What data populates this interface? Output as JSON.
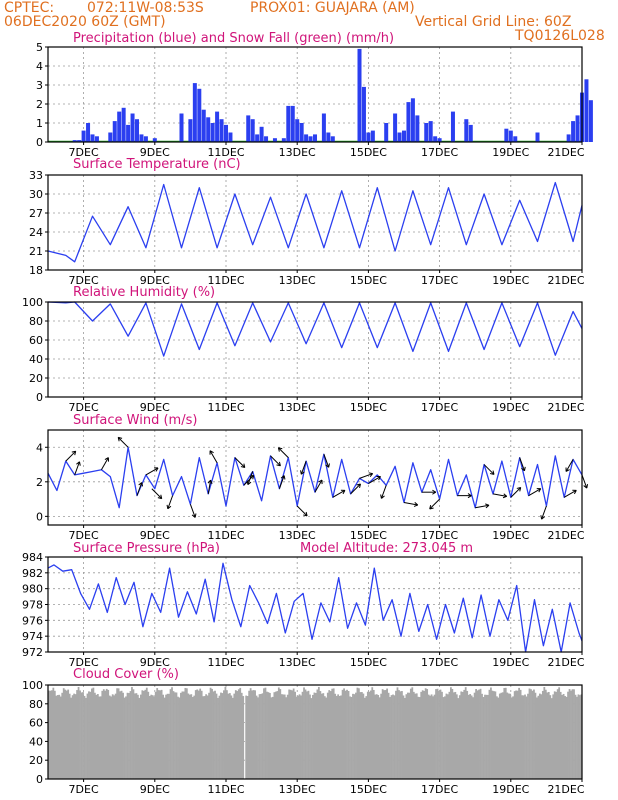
{
  "header": {
    "line1_left": "CPTEC:",
    "line1_coords": "072:11W-08:53S",
    "line1_station": "PROX01: GUAJARA (AM)",
    "line2_left": "06DEC2020 60Z (GMT)",
    "line2_right": "Vertical Grid Line: 60Z",
    "line3_right": "TQ0126L028"
  },
  "x_axis": {
    "start": "2020-12-06T00:00",
    "end": "2020-12-21T00:00",
    "tick_labels": [
      "7DEC",
      "9DEC",
      "11DEC",
      "13DEC",
      "15DEC",
      "17DEC",
      "19DEC",
      "21DEC"
    ]
  },
  "chart_data": [
    {
      "id": "precip",
      "type": "bar",
      "title": "Precipitation (blue) and Snow Fall (green) (mm/h)",
      "ylim": [
        0,
        5
      ],
      "yticks": [
        0,
        1,
        2,
        3,
        4,
        5
      ],
      "colors": {
        "bar": "#2b3ff0",
        "snow": "#1ea01e"
      },
      "grid": true,
      "bars": [
        {
          "x": "2020-12-06T18:00",
          "y": 0.1
        },
        {
          "x": "2020-12-06T21:00",
          "y": 0.1
        },
        {
          "x": "2020-12-07T00:00",
          "y": 0.6
        },
        {
          "x": "2020-12-07T03:00",
          "y": 1.0
        },
        {
          "x": "2020-12-07T06:00",
          "y": 0.4
        },
        {
          "x": "2020-12-07T09:00",
          "y": 0.3
        },
        {
          "x": "2020-12-07T18:00",
          "y": 0.5
        },
        {
          "x": "2020-12-07T21:00",
          "y": 1.1
        },
        {
          "x": "2020-12-08T00:00",
          "y": 1.6
        },
        {
          "x": "2020-12-08T03:00",
          "y": 1.8
        },
        {
          "x": "2020-12-08T06:00",
          "y": 0.9
        },
        {
          "x": "2020-12-08T09:00",
          "y": 1.5
        },
        {
          "x": "2020-12-08T12:00",
          "y": 1.2
        },
        {
          "x": "2020-12-08T15:00",
          "y": 0.4
        },
        {
          "x": "2020-12-08T18:00",
          "y": 0.3
        },
        {
          "x": "2020-12-09T00:00",
          "y": 0.2
        },
        {
          "x": "2020-12-09T18:00",
          "y": 1.5
        },
        {
          "x": "2020-12-10T00:00",
          "y": 1.2
        },
        {
          "x": "2020-12-10T03:00",
          "y": 3.1
        },
        {
          "x": "2020-12-10T06:00",
          "y": 2.8
        },
        {
          "x": "2020-12-10T09:00",
          "y": 1.7
        },
        {
          "x": "2020-12-10T12:00",
          "y": 1.3
        },
        {
          "x": "2020-12-10T15:00",
          "y": 1.0
        },
        {
          "x": "2020-12-10T18:00",
          "y": 1.6
        },
        {
          "x": "2020-12-10T21:00",
          "y": 1.2
        },
        {
          "x": "2020-12-11T00:00",
          "y": 0.9
        },
        {
          "x": "2020-12-11T03:00",
          "y": 0.5
        },
        {
          "x": "2020-12-11T15:00",
          "y": 1.4
        },
        {
          "x": "2020-12-11T18:00",
          "y": 1.2
        },
        {
          "x": "2020-12-11T21:00",
          "y": 0.4
        },
        {
          "x": "2020-12-12T00:00",
          "y": 0.8
        },
        {
          "x": "2020-12-12T03:00",
          "y": 0.3
        },
        {
          "x": "2020-12-12T09:00",
          "y": 0.2
        },
        {
          "x": "2020-12-12T15:00",
          "y": 0.2
        },
        {
          "x": "2020-12-12T18:00",
          "y": 1.9
        },
        {
          "x": "2020-12-12T21:00",
          "y": 1.9
        },
        {
          "x": "2020-12-13T00:00",
          "y": 1.2
        },
        {
          "x": "2020-12-13T03:00",
          "y": 1.0
        },
        {
          "x": "2020-12-13T06:00",
          "y": 0.4
        },
        {
          "x": "2020-12-13T09:00",
          "y": 0.3
        },
        {
          "x": "2020-12-13T12:00",
          "y": 0.4
        },
        {
          "x": "2020-12-13T18:00",
          "y": 1.5
        },
        {
          "x": "2020-12-13T21:00",
          "y": 0.5
        },
        {
          "x": "2020-12-14T00:00",
          "y": 0.3
        },
        {
          "x": "2020-12-14T18:00",
          "y": 4.9
        },
        {
          "x": "2020-12-14T21:00",
          "y": 2.9
        },
        {
          "x": "2020-12-15T00:00",
          "y": 0.5
        },
        {
          "x": "2020-12-15T03:00",
          "y": 0.6
        },
        {
          "x": "2020-12-15T12:00",
          "y": 1.0
        },
        {
          "x": "2020-12-15T18:00",
          "y": 1.5
        },
        {
          "x": "2020-12-15T21:00",
          "y": 0.5
        },
        {
          "x": "2020-12-16T00:00",
          "y": 0.6
        },
        {
          "x": "2020-12-16T03:00",
          "y": 2.1
        },
        {
          "x": "2020-12-16T06:00",
          "y": 2.3
        },
        {
          "x": "2020-12-16T09:00",
          "y": 1.4
        },
        {
          "x": "2020-12-16T15:00",
          "y": 1.0
        },
        {
          "x": "2020-12-16T18:00",
          "y": 1.1
        },
        {
          "x": "2020-12-16T21:00",
          "y": 0.3
        },
        {
          "x": "2020-12-17T00:00",
          "y": 0.2
        },
        {
          "x": "2020-12-17T09:00",
          "y": 1.6
        },
        {
          "x": "2020-12-17T18:00",
          "y": 1.2
        },
        {
          "x": "2020-12-17T21:00",
          "y": 0.9
        },
        {
          "x": "2020-12-18T21:00",
          "y": 0.7
        },
        {
          "x": "2020-12-19T00:00",
          "y": 0.6
        },
        {
          "x": "2020-12-19T03:00",
          "y": 0.3
        },
        {
          "x": "2020-12-19T18:00",
          "y": 0.5
        },
        {
          "x": "2020-12-20T15:00",
          "y": 0.4
        },
        {
          "x": "2020-12-20T18:00",
          "y": 1.1
        },
        {
          "x": "2020-12-20T21:00",
          "y": 1.4
        },
        {
          "x": "2020-12-21T00:00",
          "y": 2.6
        },
        {
          "x": "2020-12-21T03:00",
          "y": 3.3
        },
        {
          "x": "2020-12-21T06:00",
          "y": 2.2
        }
      ]
    },
    {
      "id": "temp",
      "type": "line",
      "title": "Surface Temperature (nC)",
      "ylim": [
        18,
        33
      ],
      "yticks": [
        18,
        21,
        24,
        27,
        30,
        33
      ],
      "colors": {
        "line": "#2b3ff0"
      },
      "grid": true,
      "x": [
        "2020-12-06T00:00",
        "2020-12-06T12:00",
        "2020-12-06T18:00",
        "2020-12-07T06:00",
        "2020-12-07T18:00",
        "2020-12-08T06:00",
        "2020-12-08T18:00",
        "2020-12-09T06:00",
        "2020-12-09T18:00",
        "2020-12-10T06:00",
        "2020-12-10T18:00",
        "2020-12-11T06:00",
        "2020-12-11T18:00",
        "2020-12-12T06:00",
        "2020-12-12T18:00",
        "2020-12-13T06:00",
        "2020-12-13T18:00",
        "2020-12-14T06:00",
        "2020-12-14T18:00",
        "2020-12-15T06:00",
        "2020-12-15T18:00",
        "2020-12-16T06:00",
        "2020-12-16T18:00",
        "2020-12-17T06:00",
        "2020-12-17T18:00",
        "2020-12-18T06:00",
        "2020-12-18T18:00",
        "2020-12-19T06:00",
        "2020-12-19T18:00",
        "2020-12-20T06:00",
        "2020-12-20T18:00",
        "2020-12-21T00:00"
      ],
      "values": [
        21.0,
        20.3,
        19.3,
        26.5,
        22.0,
        28.0,
        21.5,
        31.5,
        21.5,
        31.0,
        21.5,
        30.0,
        22.0,
        29.5,
        21.5,
        30.0,
        21.5,
        30.5,
        21.5,
        31.0,
        21.0,
        30.5,
        22.0,
        31.0,
        22.0,
        30.0,
        22.0,
        29.0,
        22.5,
        31.8,
        22.5,
        28.2
      ]
    },
    {
      "id": "rh",
      "type": "line",
      "title": "Relative Humidity (%)",
      "ylim": [
        0,
        100
      ],
      "yticks": [
        0,
        20,
        40,
        60,
        80,
        100
      ],
      "colors": {
        "line": "#2b3ff0"
      },
      "grid": true,
      "x": [
        "2020-12-06T00:00",
        "2020-12-06T12:00",
        "2020-12-06T18:00",
        "2020-12-07T06:00",
        "2020-12-07T18:00",
        "2020-12-08T06:00",
        "2020-12-08T18:00",
        "2020-12-09T06:00",
        "2020-12-09T18:00",
        "2020-12-10T06:00",
        "2020-12-10T18:00",
        "2020-12-11T06:00",
        "2020-12-11T18:00",
        "2020-12-12T06:00",
        "2020-12-12T18:00",
        "2020-12-13T06:00",
        "2020-12-13T18:00",
        "2020-12-14T06:00",
        "2020-12-14T18:00",
        "2020-12-15T06:00",
        "2020-12-15T18:00",
        "2020-12-16T06:00",
        "2020-12-16T18:00",
        "2020-12-17T06:00",
        "2020-12-17T18:00",
        "2020-12-18T06:00",
        "2020-12-18T18:00",
        "2020-12-19T06:00",
        "2020-12-19T18:00",
        "2020-12-20T06:00",
        "2020-12-20T18:00",
        "2020-12-21T00:00"
      ],
      "values": [
        100,
        99,
        100,
        80,
        98,
        64,
        99,
        43,
        98,
        50,
        99,
        54,
        99,
        58,
        99,
        56,
        99,
        52,
        99,
        52,
        99,
        48,
        99,
        48,
        99,
        50,
        99,
        53,
        99,
        44,
        90,
        72
      ]
    },
    {
      "id": "wind",
      "type": "line",
      "title": "Surface Wind (m/s)",
      "ylim": [
        -0.5,
        5
      ],
      "yticks": [
        0,
        2,
        4
      ],
      "colors": {
        "line": "#2b3ff0",
        "arrow": "#000000"
      },
      "grid": true,
      "x": [
        "2020-12-06T00:00",
        "2020-12-06T06:00",
        "2020-12-06T12:00",
        "2020-12-06T18:00",
        "2020-12-07T00:00",
        "2020-12-07T06:00",
        "2020-12-07T12:00",
        "2020-12-07T18:00",
        "2020-12-08T00:00",
        "2020-12-08T06:00",
        "2020-12-08T12:00",
        "2020-12-08T18:00",
        "2020-12-09T00:00",
        "2020-12-09T06:00",
        "2020-12-09T12:00",
        "2020-12-09T18:00",
        "2020-12-10T00:00",
        "2020-12-10T06:00",
        "2020-12-10T12:00",
        "2020-12-10T18:00",
        "2020-12-11T00:00",
        "2020-12-11T06:00",
        "2020-12-11T12:00",
        "2020-12-11T18:00",
        "2020-12-12T00:00",
        "2020-12-12T06:00",
        "2020-12-12T12:00",
        "2020-12-12T18:00",
        "2020-12-13T00:00",
        "2020-12-13T06:00",
        "2020-12-13T12:00",
        "2020-12-13T18:00",
        "2020-12-14T00:00",
        "2020-12-14T06:00",
        "2020-12-14T12:00",
        "2020-12-14T18:00",
        "2020-12-15T00:00",
        "2020-12-15T06:00",
        "2020-12-15T12:00",
        "2020-12-15T18:00",
        "2020-12-16T00:00",
        "2020-12-16T06:00",
        "2020-12-16T12:00",
        "2020-12-16T18:00",
        "2020-12-17T00:00",
        "2020-12-17T06:00",
        "2020-12-17T12:00",
        "2020-12-17T18:00",
        "2020-12-18T00:00",
        "2020-12-18T06:00",
        "2020-12-18T12:00",
        "2020-12-18T18:00",
        "2020-12-19T00:00",
        "2020-12-19T06:00",
        "2020-12-19T12:00",
        "2020-12-19T18:00",
        "2020-12-20T00:00",
        "2020-12-20T06:00",
        "2020-12-20T12:00",
        "2020-12-20T18:00",
        "2020-12-21T00:00"
      ],
      "values": [
        2.5,
        1.5,
        3.2,
        2.4,
        2.5,
        2.6,
        2.7,
        2.3,
        0.5,
        4.0,
        1.2,
        2.4,
        1.6,
        3.3,
        1.2,
        2.3,
        0.7,
        3.4,
        1.3,
        3.1,
        0.6,
        3.4,
        1.8,
        2.6,
        0.9,
        3.5,
        1.6,
        3.4,
        0.6,
        3.2,
        1.4,
        3.6,
        1.1,
        3.3,
        1.3,
        2.2,
        1.9,
        2.4,
        1.8,
        2.9,
        0.8,
        3.1,
        1.4,
        2.7,
        1.0,
        3.3,
        1.2,
        2.4,
        0.5,
        3.0,
        1.3,
        3.2,
        1.1,
        3.4,
        1.2,
        3.0,
        0.6,
        3.5,
        1.1,
        3.3,
        2.4
      ],
      "arrows": [
        {
          "x": "2020-12-06T12:00",
          "dir_deg": 45
        },
        {
          "x": "2020-12-06T18:00",
          "dir_deg": 20
        },
        {
          "x": "2020-12-07T12:00",
          "dir_deg": 30
        },
        {
          "x": "2020-12-08T06:00",
          "dir_deg": 315
        },
        {
          "x": "2020-12-08T12:00",
          "dir_deg": 20
        },
        {
          "x": "2020-12-08T18:00",
          "dir_deg": 60
        },
        {
          "x": "2020-12-08T22:00",
          "dir_deg": 135
        },
        {
          "x": "2020-12-09T12:00",
          "dir_deg": 200
        },
        {
          "x": "2020-12-10T00:00",
          "dir_deg": 160
        },
        {
          "x": "2020-12-10T12:00",
          "dir_deg": 10
        },
        {
          "x": "2020-12-10T18:00",
          "dir_deg": 330
        },
        {
          "x": "2020-12-11T06:00",
          "dir_deg": 135
        },
        {
          "x": "2020-12-11T12:00",
          "dir_deg": 45
        },
        {
          "x": "2020-12-11T18:00",
          "dir_deg": 200
        },
        {
          "x": "2020-12-12T06:00",
          "dir_deg": 135
        },
        {
          "x": "2020-12-12T12:00",
          "dir_deg": 20
        },
        {
          "x": "2020-12-12T18:00",
          "dir_deg": 315
        },
        {
          "x": "2020-12-13T00:00",
          "dir_deg": 135
        },
        {
          "x": "2020-12-13T06:00",
          "dir_deg": 200
        },
        {
          "x": "2020-12-13T12:00",
          "dir_deg": 30
        },
        {
          "x": "2020-12-13T18:00",
          "dir_deg": 160
        },
        {
          "x": "2020-12-14T00:00",
          "dir_deg": 60
        },
        {
          "x": "2020-12-14T12:00",
          "dir_deg": 45
        },
        {
          "x": "2020-12-14T18:00",
          "dir_deg": 70
        },
        {
          "x": "2020-12-15T00:00",
          "dir_deg": 60
        },
        {
          "x": "2020-12-15T12:00",
          "dir_deg": 200
        },
        {
          "x": "2020-12-16T00:00",
          "dir_deg": 100
        },
        {
          "x": "2020-12-16T12:00",
          "dir_deg": 90
        },
        {
          "x": "2020-12-17T00:00",
          "dir_deg": 225
        },
        {
          "x": "2020-12-17T12:00",
          "dir_deg": 90
        },
        {
          "x": "2020-12-18T00:00",
          "dir_deg": 80
        },
        {
          "x": "2020-12-18T06:00",
          "dir_deg": 135
        },
        {
          "x": "2020-12-18T12:00",
          "dir_deg": 100
        },
        {
          "x": "2020-12-19T00:00",
          "dir_deg": 45
        },
        {
          "x": "2020-12-19T06:00",
          "dir_deg": 160
        },
        {
          "x": "2020-12-19T12:00",
          "dir_deg": 60
        },
        {
          "x": "2020-12-20T00:00",
          "dir_deg": 200
        },
        {
          "x": "2020-12-20T12:00",
          "dir_deg": 60
        },
        {
          "x": "2020-12-20T18:00",
          "dir_deg": 210
        },
        {
          "x": "2020-12-21T00:00",
          "dir_deg": 160
        }
      ]
    },
    {
      "id": "pressure",
      "type": "line",
      "title": "Surface Pressure (hPa)",
      "annotation": "Model Altitude: 273.045 m",
      "ylim": [
        972,
        984
      ],
      "yticks": [
        972,
        974,
        976,
        978,
        980,
        982,
        984
      ],
      "colors": {
        "line": "#2b3ff0"
      },
      "grid": true,
      "x": [
        "2020-12-06T00:00",
        "2020-12-06T04:00",
        "2020-12-06T10:00",
        "2020-12-06T16:00",
        "2020-12-06T22:00",
        "2020-12-07T04:00",
        "2020-12-07T10:00",
        "2020-12-07T16:00",
        "2020-12-07T22:00",
        "2020-12-08T04:00",
        "2020-12-08T10:00",
        "2020-12-08T16:00",
        "2020-12-08T22:00",
        "2020-12-09T04:00",
        "2020-12-09T10:00",
        "2020-12-09T16:00",
        "2020-12-09T22:00",
        "2020-12-10T04:00",
        "2020-12-10T10:00",
        "2020-12-10T16:00",
        "2020-12-10T22:00",
        "2020-12-11T04:00",
        "2020-12-11T10:00",
        "2020-12-11T16:00",
        "2020-12-11T22:00",
        "2020-12-12T04:00",
        "2020-12-12T10:00",
        "2020-12-12T16:00",
        "2020-12-12T22:00",
        "2020-12-13T04:00",
        "2020-12-13T10:00",
        "2020-12-13T16:00",
        "2020-12-13T22:00",
        "2020-12-14T04:00",
        "2020-12-14T10:00",
        "2020-12-14T16:00",
        "2020-12-14T22:00",
        "2020-12-15T04:00",
        "2020-12-15T10:00",
        "2020-12-15T16:00",
        "2020-12-15T22:00",
        "2020-12-16T04:00",
        "2020-12-16T10:00",
        "2020-12-16T16:00",
        "2020-12-16T22:00",
        "2020-12-17T04:00",
        "2020-12-17T10:00",
        "2020-12-17T16:00",
        "2020-12-17T22:00",
        "2020-12-18T04:00",
        "2020-12-18T10:00",
        "2020-12-18T16:00",
        "2020-12-18T22:00",
        "2020-12-19T04:00",
        "2020-12-19T10:00",
        "2020-12-19T16:00",
        "2020-12-19T22:00",
        "2020-12-20T04:00",
        "2020-12-20T10:00",
        "2020-12-20T16:00",
        "2020-12-20T22:00",
        "2020-12-21T00:00"
      ],
      "values": [
        982.6,
        983.0,
        982.2,
        982.4,
        979.4,
        977.4,
        980.6,
        977.0,
        981.4,
        978.0,
        980.8,
        975.2,
        979.4,
        977.0,
        982.6,
        976.4,
        979.6,
        976.8,
        981.2,
        975.8,
        983.2,
        978.6,
        975.2,
        980.4,
        978.2,
        975.6,
        979.4,
        974.4,
        978.4,
        979.4,
        973.6,
        978.2,
        975.8,
        981.4,
        975.0,
        978.2,
        975.4,
        982.6,
        976.0,
        978.6,
        974.0,
        979.4,
        974.6,
        978.0,
        973.6,
        978.0,
        974.4,
        978.8,
        973.8,
        979.2,
        974.0,
        978.6,
        976.0,
        980.4,
        972.0,
        978.6,
        972.8,
        977.4,
        972.0,
        978.2,
        974.4,
        973.4
      ]
    },
    {
      "id": "cloud",
      "type": "bar",
      "title": "Cloud Cover (%)",
      "ylim": [
        0,
        100
      ],
      "yticks": [
        0,
        20,
        40,
        60,
        80,
        100
      ],
      "colors": {
        "bar": "#a8a8a8"
      },
      "grid": true,
      "x_start": "2020-12-06T00:00",
      "step_hours": 1,
      "values_note": "",
      "values": []
    }
  ]
}
